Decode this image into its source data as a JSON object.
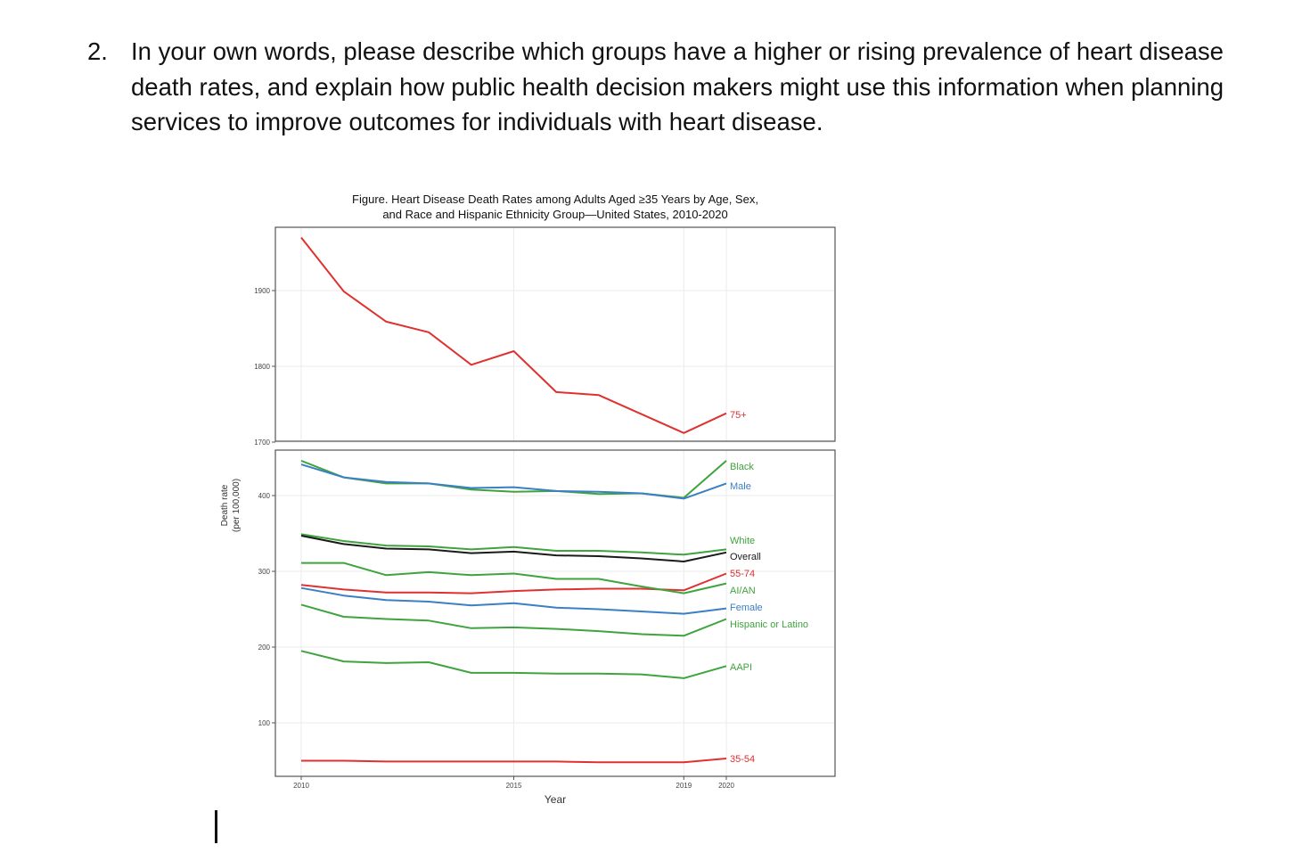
{
  "question": {
    "number": "2.",
    "text": "In your own words, please describe which groups have a higher or rising prevalence of heart disease death rates, and explain how public health decision makers might use this information when planning services to improve outcomes for individuals with heart disease."
  },
  "chart_data": {
    "type": "line",
    "title_line1": "Figure. Heart Disease Death Rates among Adults Aged ≥35 Years by Age, Sex,",
    "title_line2": "and Race and Hispanic Ethnicity Group—United States, 2010-2020",
    "xlabel": "Year",
    "ylabel_line1": "Death rate",
    "ylabel_line2": "(per 100,000)",
    "x": [
      2010,
      2011,
      2012,
      2013,
      2014,
      2015,
      2016,
      2017,
      2018,
      2019,
      2020
    ],
    "x_ticks": [
      2010,
      2015,
      2019,
      2020
    ],
    "grid": true,
    "legend_placement": "direct labels at right end of each line",
    "panels": [
      {
        "id": "top",
        "ylim": [
          1700,
          1970
        ],
        "y_ticks": [
          1700,
          1800,
          1900
        ],
        "series": [
          {
            "name": "75+",
            "color": "#e03131",
            "values": [
              1970,
              1899,
              1859,
              1845,
              1802,
              1820,
              1766,
              1762,
              1737,
              1712,
              1738
            ]
          }
        ]
      },
      {
        "id": "bottom",
        "ylim": [
          38,
          460
        ],
        "y_ticks": [
          100,
          200,
          300,
          400
        ],
        "series": [
          {
            "name": "Black",
            "color": "#3fa33f",
            "values": [
              446,
              424,
              416,
              416,
              408,
              405,
              406,
              402,
              403,
              397,
              446
            ]
          },
          {
            "name": "Male",
            "color": "#3b7fc4",
            "values": [
              441,
              424,
              418,
              416,
              410,
              411,
              406,
              405,
              403,
              396,
              416
            ]
          },
          {
            "name": "White",
            "color": "#3fa33f",
            "values": [
              349,
              340,
              334,
              333,
              329,
              332,
              327,
              327,
              325,
              322,
              329
            ]
          },
          {
            "name": "Overall",
            "color": "#1a1a1a",
            "values": [
              347,
              336,
              330,
              329,
              324,
              326,
              321,
              320,
              317,
              313,
              325
            ]
          },
          {
            "name": "55-74",
            "color": "#e03131",
            "values": [
              282,
              276,
              272,
              272,
              271,
              274,
              276,
              277,
              277,
              275,
              297
            ]
          },
          {
            "name": "AI/AN",
            "color": "#3fa33f",
            "values": [
              311,
              311,
              295,
              299,
              295,
              297,
              290,
              290,
              280,
              271,
              284
            ]
          },
          {
            "name": "Female",
            "color": "#3b7fc4",
            "values": [
              278,
              268,
              262,
              260,
              255,
              258,
              252,
              250,
              247,
              244,
              251
            ]
          },
          {
            "name": "Hispanic or Latino",
            "color": "#3fa33f",
            "values": [
              256,
              240,
              237,
              235,
              225,
              226,
              224,
              221,
              217,
              215,
              237
            ]
          },
          {
            "name": "AAPI",
            "color": "#3fa33f",
            "values": [
              195,
              181,
              179,
              180,
              166,
              166,
              165,
              165,
              164,
              159,
              175
            ]
          },
          {
            "name": "35-54",
            "color": "#e03131",
            "values": [
              50,
              50,
              49,
              49,
              49,
              49,
              49,
              48,
              48,
              48,
              53
            ]
          }
        ]
      }
    ]
  }
}
